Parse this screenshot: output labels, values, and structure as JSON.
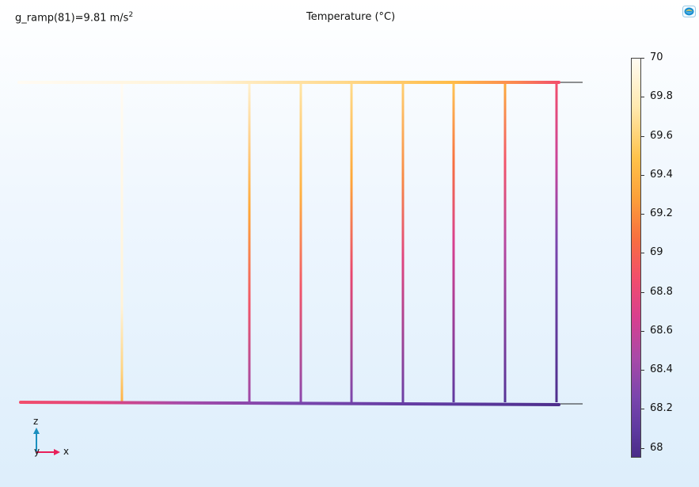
{
  "header": {
    "param_text": "g_ramp(81)=9.81 m/s",
    "param_exponent": "2",
    "title": "Temperature (°C)"
  },
  "toolbar": {
    "logo_icon": "comsol-logo-icon"
  },
  "colorbar": {
    "min": 67.95,
    "max": 70,
    "tick_labels": [
      "70",
      "69.8",
      "69.6",
      "69.4",
      "69.2",
      "69",
      "68.8",
      "68.6",
      "68.4",
      "68.2",
      "68"
    ],
    "tick_values": [
      70,
      69.8,
      69.6,
      69.4,
      69.2,
      69,
      68.8,
      68.6,
      68.4,
      68.2,
      68
    ],
    "colormap": [
      "#fffbf2",
      "#ffe9b0",
      "#ffc24a",
      "#fca03a",
      "#f8703f",
      "#f24e6b",
      "#d83f8f",
      "#a94aa7",
      "#7a46ad",
      "#5f3aa0",
      "#4a2c88"
    ]
  },
  "axes_triad": {
    "z_label": "z",
    "y_label": "y",
    "x_label": "x",
    "z_color": "#1a8fbf",
    "x_color": "#e8205a"
  }
}
